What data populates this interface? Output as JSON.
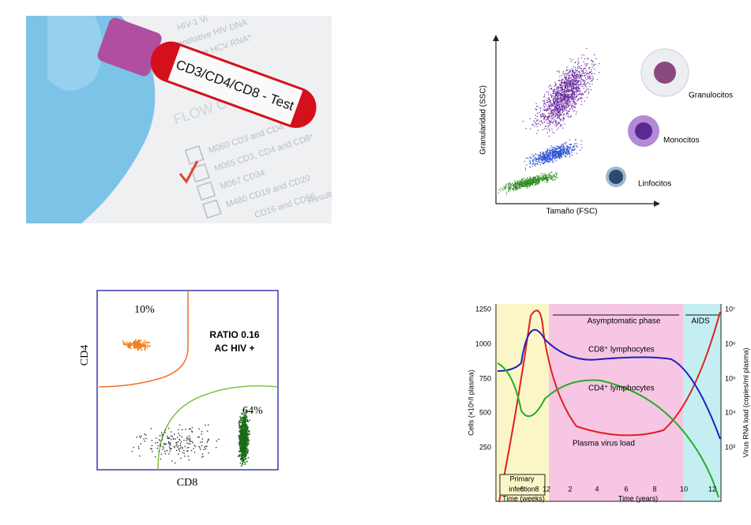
{
  "photo": {
    "tube_label": "CD3/CD4/CD8 - Test",
    "form_heading": "FLOW C",
    "form_lines": [
      "HIV-1 Vi",
      "Quantitative HIV DNA",
      "Quantitative HCV RNA*",
      "M060  CD3 and CD4*",
      "M065  CD3, CD4 and CD8*",
      "M067  CD34",
      "M480  CD19 and CD20",
      "CD16 and CD56",
      "Result"
    ]
  },
  "scatter_diagram": {
    "y_label": "Granularidad (SSC)",
    "x_label": "Tamaño (FSC)",
    "cells": [
      "Granulocitos",
      "Monocitos",
      "Linfocitos"
    ]
  },
  "flow_plot": {
    "y_label": "CD4",
    "x_label": "CD8",
    "gate_top": "10%",
    "gate_right": "64%",
    "note": [
      "RATIO 0.16",
      "AC HIV +"
    ]
  },
  "hiv_chart": {
    "y_label": "Cells (×10⁶/l plasma)",
    "y2_label": "Virus RNA load (copies/ml plasma)",
    "yticks": [
      "1250",
      "1000",
      "750",
      "500",
      "250"
    ],
    "y2ticks": [
      "10⁷",
      "10⁶",
      "10⁵",
      "10⁴",
      "10³"
    ],
    "xticks_weeks": [
      "6",
      "8",
      "12"
    ],
    "xticks_years": [
      "2",
      "4",
      "6",
      "8",
      "10",
      "12"
    ],
    "x_label_weeks": "Time (weeks)",
    "x_label_years": "Time (years)",
    "phases": [
      "Asymptomatic phase",
      "AIDS"
    ],
    "primary": [
      "Primary",
      "infection"
    ],
    "curves": [
      "CD8⁺ lymphocytes",
      "CD4⁺ lymphocytes",
      "Plasma virus load"
    ]
  }
}
